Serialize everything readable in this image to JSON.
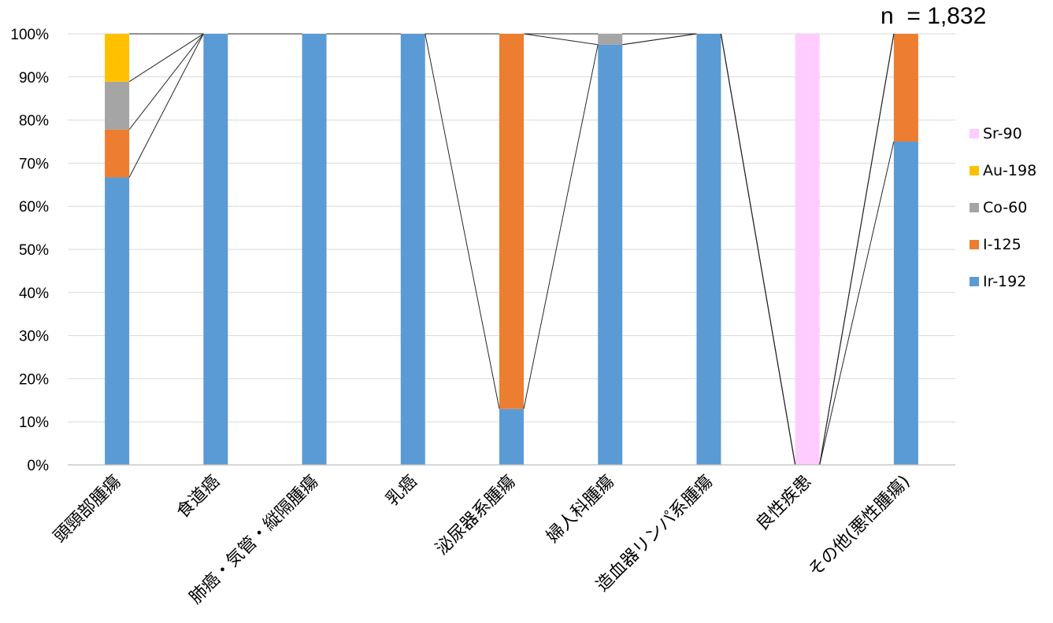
{
  "annotation": "n  = 1,832",
  "chart_data": {
    "type": "bar",
    "stacked": true,
    "percent_stacked": true,
    "categories": [
      "頭頸部腫瘍",
      "食道癌",
      "肺癌・気管・縦隔腫瘍",
      "乳癌",
      "泌尿器系腫瘍",
      "婦人科腫瘍",
      "造血器リンパ系腫瘍",
      "良性疾患",
      "その他(悪性腫瘍)"
    ],
    "series": [
      {
        "name": "Ir-192",
        "color": "#5b9bd5",
        "values": [
          66.7,
          100,
          100,
          100,
          13,
          97.5,
          100,
          0,
          75
        ]
      },
      {
        "name": "I-125",
        "color": "#ed7d31",
        "values": [
          11.1,
          0,
          0,
          0,
          87,
          0,
          0,
          0,
          25
        ]
      },
      {
        "name": "Co-60",
        "color": "#a5a5a5",
        "values": [
          11.1,
          0,
          0,
          0,
          0,
          2.5,
          0,
          0,
          0
        ]
      },
      {
        "name": "Au-198",
        "color": "#ffc000",
        "values": [
          11.1,
          0,
          0,
          0,
          0,
          0,
          0,
          0,
          0
        ]
      },
      {
        "name": "Sr-90",
        "color": "#ffccff",
        "values": [
          0,
          0,
          0,
          0,
          0,
          0,
          0,
          100,
          0
        ]
      }
    ],
    "legend_order": [
      "Sr-90",
      "Au-198",
      "Co-60",
      "I-125",
      "Ir-192"
    ],
    "legend_position": "right",
    "yticks": [
      "0%",
      "10%",
      "20%",
      "30%",
      "40%",
      "50%",
      "60%",
      "70%",
      "80%",
      "90%",
      "100%"
    ],
    "ylim": [
      0,
      100
    ],
    "grid": true,
    "series_lines": true
  }
}
